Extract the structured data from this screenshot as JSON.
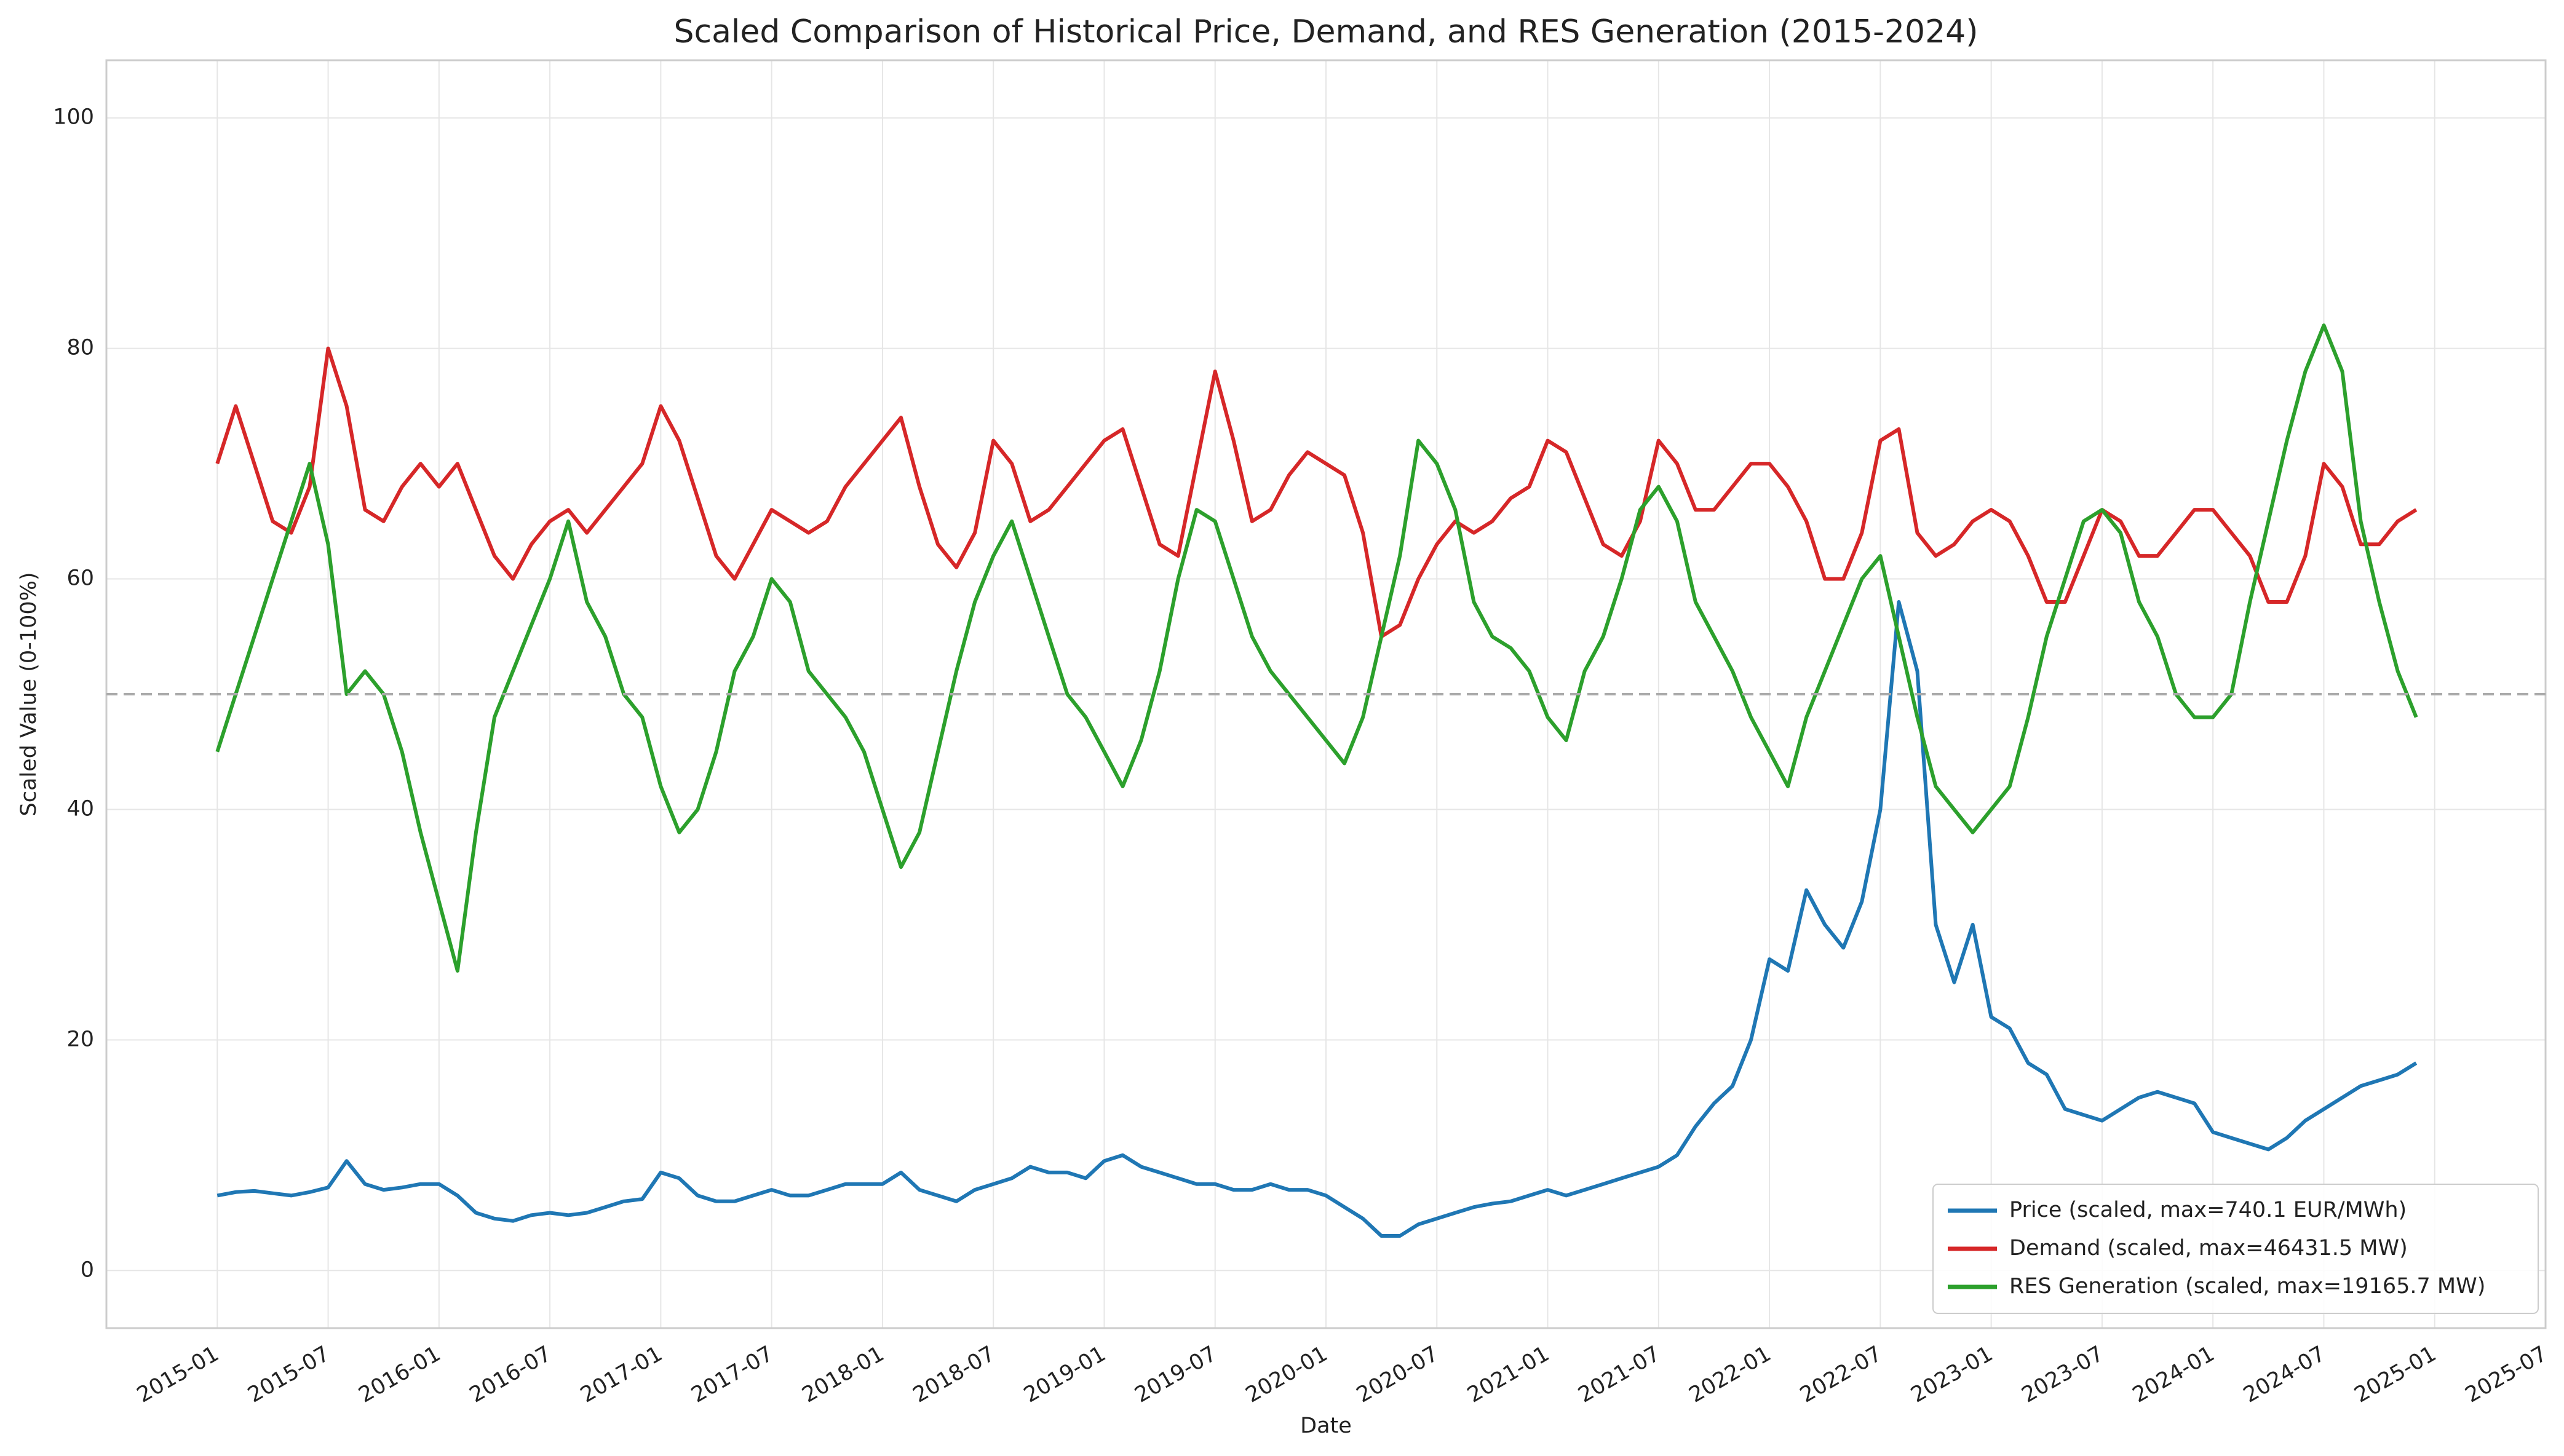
{
  "chart_data": {
    "type": "line",
    "title": "Scaled Comparison of Historical Price, Demand, and RES Generation (2015-2024)",
    "x_label": "Date",
    "y_label": "Scaled Value (0-100%)",
    "x": [
      "2015-01",
      "2015-02",
      "2015-03",
      "2015-04",
      "2015-05",
      "2015-06",
      "2015-07",
      "2015-08",
      "2015-09",
      "2015-10",
      "2015-11",
      "2015-12",
      "2016-01",
      "2016-02",
      "2016-03",
      "2016-04",
      "2016-05",
      "2016-06",
      "2016-07",
      "2016-08",
      "2016-09",
      "2016-10",
      "2016-11",
      "2016-12",
      "2017-01",
      "2017-02",
      "2017-03",
      "2017-04",
      "2017-05",
      "2017-06",
      "2017-07",
      "2017-08",
      "2017-09",
      "2017-10",
      "2017-11",
      "2017-12",
      "2018-01",
      "2018-02",
      "2018-03",
      "2018-04",
      "2018-05",
      "2018-06",
      "2018-07",
      "2018-08",
      "2018-09",
      "2018-10",
      "2018-11",
      "2018-12",
      "2019-01",
      "2019-02",
      "2019-03",
      "2019-04",
      "2019-05",
      "2019-06",
      "2019-07",
      "2019-08",
      "2019-09",
      "2019-10",
      "2019-11",
      "2019-12",
      "2020-01",
      "2020-02",
      "2020-03",
      "2020-04",
      "2020-05",
      "2020-06",
      "2020-07",
      "2020-08",
      "2020-09",
      "2020-10",
      "2020-11",
      "2020-12",
      "2021-01",
      "2021-02",
      "2021-03",
      "2021-04",
      "2021-05",
      "2021-06",
      "2021-07",
      "2021-08",
      "2021-09",
      "2021-10",
      "2021-11",
      "2021-12",
      "2022-01",
      "2022-02",
      "2022-03",
      "2022-04",
      "2022-05",
      "2022-06",
      "2022-07",
      "2022-08",
      "2022-09",
      "2022-10",
      "2022-11",
      "2022-12",
      "2023-01",
      "2023-02",
      "2023-03",
      "2023-04",
      "2023-05",
      "2023-06",
      "2023-07",
      "2023-08",
      "2023-09",
      "2023-10",
      "2023-11",
      "2023-12",
      "2024-01",
      "2024-02",
      "2024-03",
      "2024-04",
      "2024-05",
      "2024-06",
      "2024-07",
      "2024-08",
      "2024-09",
      "2024-10",
      "2024-11",
      "2024-12"
    ],
    "series": [
      {
        "name": "Price (scaled, max=740.1 EUR/MWh)",
        "color": "#1f77b4",
        "values": [
          6.5,
          6.8,
          6.9,
          6.7,
          6.5,
          6.8,
          7.2,
          9.5,
          7.5,
          7.0,
          7.2,
          7.5,
          7.5,
          6.5,
          5.0,
          4.5,
          4.3,
          4.8,
          5.0,
          4.8,
          5.0,
          5.5,
          6.0,
          6.2,
          8.5,
          8.0,
          6.5,
          6.0,
          6.0,
          6.5,
          7.0,
          6.5,
          6.5,
          7.0,
          7.5,
          7.5,
          7.5,
          8.5,
          7.0,
          6.5,
          6.0,
          7.0,
          7.5,
          8.0,
          9.0,
          8.5,
          8.5,
          8.0,
          9.5,
          10.0,
          9.0,
          8.5,
          8.0,
          7.5,
          7.5,
          7.0,
          7.0,
          7.5,
          7.0,
          7.0,
          6.5,
          5.5,
          4.5,
          3.0,
          3.0,
          4.0,
          4.5,
          5.0,
          5.5,
          5.8,
          6.0,
          6.5,
          7.0,
          6.5,
          7.0,
          7.5,
          8.0,
          8.5,
          9.0,
          10.0,
          12.5,
          14.5,
          16.0,
          20.0,
          27.0,
          26.0,
          33.0,
          30.0,
          28.0,
          32.0,
          40.0,
          58.0,
          52.0,
          30.0,
          25.0,
          30.0,
          22.0,
          21.0,
          18.0,
          17.0,
          14.0,
          13.5,
          13.0,
          14.0,
          15.0,
          15.5,
          15.0,
          14.5,
          12.0,
          11.5,
          11.0,
          10.5,
          11.5,
          13.0,
          14.0,
          15.0,
          16.0,
          16.5,
          17.0,
          18.0
        ]
      },
      {
        "name": "Demand (scaled, max=46431.5 MW)",
        "color": "#d62728",
        "values": [
          70,
          75,
          70,
          65,
          64,
          68,
          80,
          75,
          66,
          65,
          68,
          70,
          68,
          70,
          66,
          62,
          60,
          63,
          65,
          66,
          64,
          66,
          68,
          70,
          75,
          72,
          67,
          62,
          60,
          63,
          66,
          65,
          64,
          65,
          68,
          70,
          72,
          74,
          68,
          63,
          61,
          64,
          72,
          70,
          65,
          66,
          68,
          70,
          72,
          73,
          68,
          63,
          62,
          70,
          78,
          72,
          65,
          66,
          69,
          71,
          70,
          69,
          64,
          55,
          56,
          60,
          63,
          65,
          64,
          65,
          67,
          68,
          72,
          71,
          67,
          63,
          62,
          65,
          72,
          70,
          66,
          66,
          68,
          70,
          70,
          68,
          65,
          60,
          60,
          64,
          72,
          73,
          64,
          62,
          63,
          65,
          66,
          65,
          62,
          58,
          58,
          62,
          66,
          65,
          62,
          62,
          64,
          66,
          66,
          64,
          62,
          58,
          58,
          62,
          70,
          68,
          63,
          63,
          65,
          66
        ]
      },
      {
        "name": "RES Generation (scaled, max=19165.7 MW)",
        "color": "#2ca02c",
        "values": [
          45,
          50,
          55,
          60,
          65,
          70,
          63,
          50,
          52,
          50,
          45,
          38,
          32,
          26,
          38,
          48,
          52,
          56,
          60,
          65,
          58,
          55,
          50,
          48,
          42,
          38,
          40,
          45,
          52,
          55,
          60,
          58,
          52,
          50,
          48,
          45,
          40,
          35,
          38,
          45,
          52,
          58,
          62,
          65,
          60,
          55,
          50,
          48,
          45,
          42,
          46,
          52,
          60,
          66,
          65,
          60,
          55,
          52,
          50,
          48,
          46,
          44,
          48,
          55,
          62,
          72,
          70,
          66,
          58,
          55,
          54,
          52,
          48,
          46,
          52,
          55,
          60,
          66,
          68,
          65,
          58,
          55,
          52,
          48,
          45,
          42,
          48,
          52,
          56,
          60,
          62,
          55,
          48,
          42,
          40,
          38,
          40,
          42,
          48,
          55,
          60,
          65,
          66,
          64,
          58,
          55,
          50,
          48,
          48,
          50,
          58,
          65,
          72,
          78,
          82,
          78,
          65,
          58,
          52,
          48
        ]
      }
    ],
    "xlim": [
      "2014-07",
      "2025-07"
    ],
    "xticks": [
      "2015-01",
      "2015-07",
      "2016-01",
      "2016-07",
      "2017-01",
      "2017-07",
      "2018-01",
      "2018-07",
      "2019-01",
      "2019-07",
      "2020-01",
      "2020-07",
      "2021-01",
      "2021-07",
      "2022-01",
      "2022-07",
      "2023-01",
      "2023-07",
      "2024-01",
      "2024-07",
      "2025-01",
      "2025-07"
    ],
    "ylim": [
      -5,
      105
    ],
    "yticks": [
      0,
      20,
      40,
      60,
      80,
      100
    ],
    "hline": 50,
    "grid": true,
    "legend": "lower right"
  }
}
